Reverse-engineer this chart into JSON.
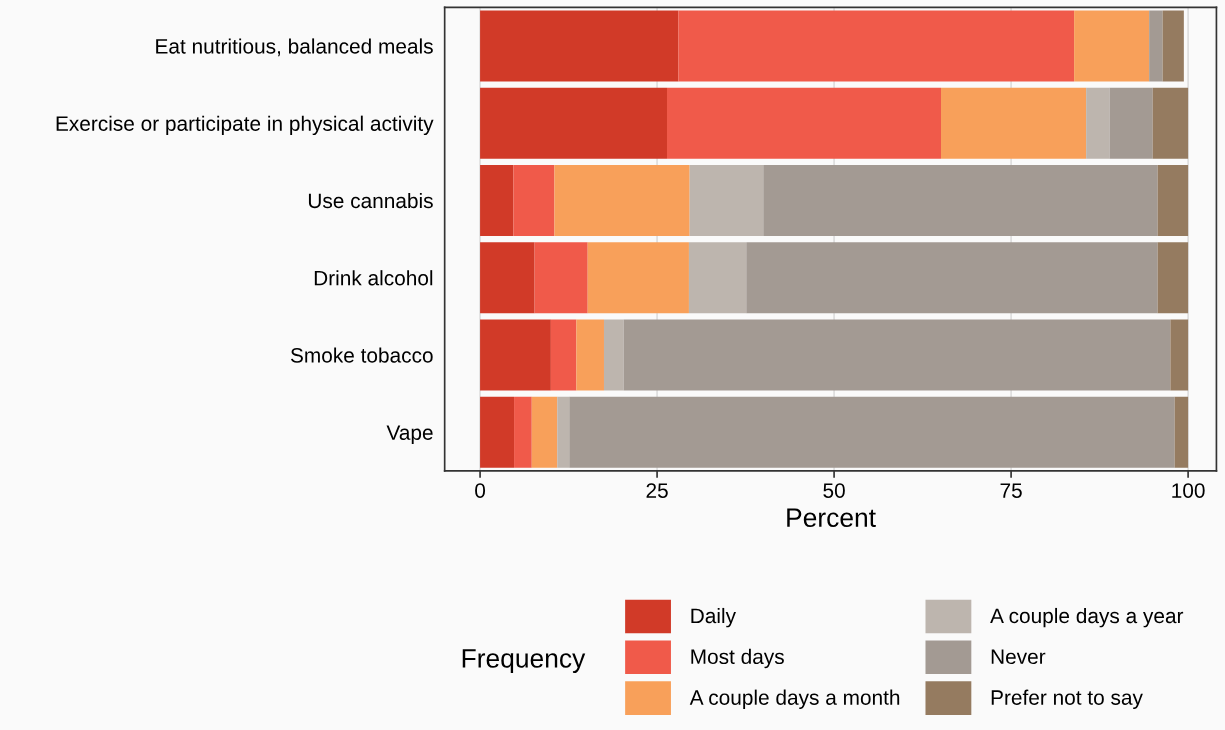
{
  "chart_data": {
    "type": "bar",
    "orientation": "horizontal",
    "stacked": true,
    "categories": [
      "Eat nutritious, balanced meals",
      "Exercise or participate in physical activity",
      "Use cannabis",
      "Drink alcohol",
      "Smoke tobacco",
      "Vape"
    ],
    "series": [
      {
        "name": "Daily",
        "color": "#d13a28",
        "values": [
          28.0,
          26.4,
          4.7,
          7.7,
          10.0,
          4.8
        ]
      },
      {
        "name": "Most days",
        "color": "#f05a4a",
        "values": [
          55.9,
          38.7,
          5.8,
          7.5,
          3.6,
          2.5
        ]
      },
      {
        "name": "A couple days a month",
        "color": "#f8a05a",
        "values": [
          10.6,
          20.5,
          19.1,
          14.3,
          3.9,
          3.6
        ]
      },
      {
        "name": "A couple days a year",
        "color": "#bdb5ae",
        "values": [
          0,
          3.3,
          10.4,
          8.1,
          2.8,
          1.7
        ]
      },
      {
        "name": "Never",
        "color": "#a39a93",
        "values": [
          1.9,
          6.1,
          55.7,
          58.1,
          77.2,
          85.5
        ]
      },
      {
        "name": "Prefer not to say",
        "color": "#957b60",
        "values": [
          3.0,
          5.0,
          4.3,
          4.3,
          2.5,
          1.9
        ]
      }
    ],
    "xlabel": "Percent",
    "legend_title": "Frequency",
    "legend": "bottom",
    "xlim": [
      -5,
      104
    ],
    "xticks": [
      0,
      25,
      50,
      75,
      100
    ],
    "grid": "x"
  }
}
